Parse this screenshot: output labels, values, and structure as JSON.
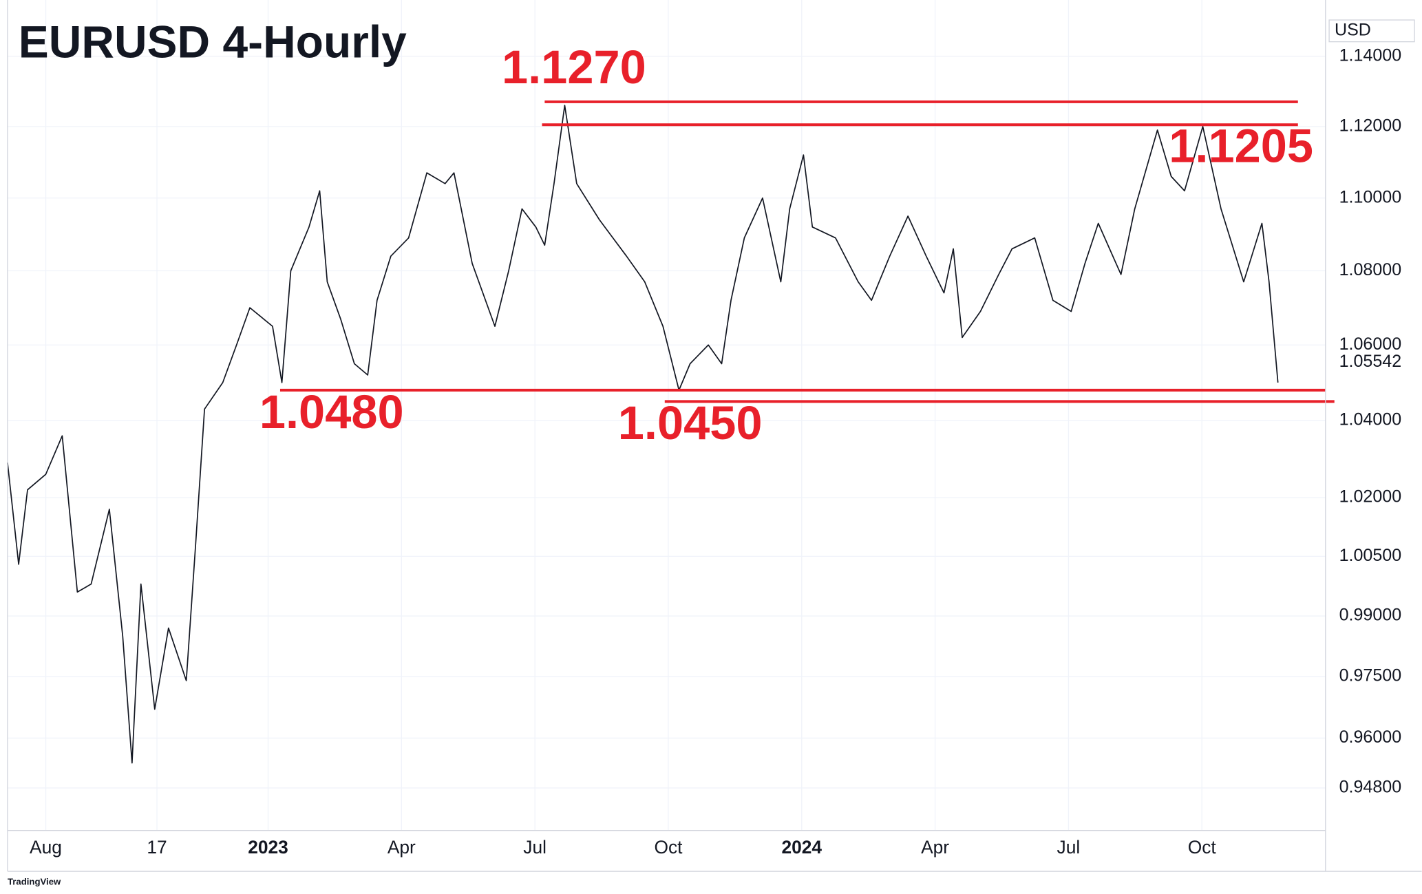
{
  "chart_data": {
    "type": "line",
    "title": "EURUSD 4-Hourly",
    "currency": "USD",
    "watermark": "TradingView",
    "log_scale": true,
    "grid": true,
    "xlim": [
      -0.86,
      28.78
    ],
    "xticks": [
      {
        "value": 0,
        "label": "Aug"
      },
      {
        "value": 2.5,
        "label": "17"
      },
      {
        "value": 5,
        "label": "2023"
      },
      {
        "value": 8,
        "label": "Apr"
      },
      {
        "value": 11,
        "label": "Jul"
      },
      {
        "value": 14,
        "label": "Oct"
      },
      {
        "value": 17,
        "label": "2024"
      },
      {
        "value": 20,
        "label": "Apr"
      },
      {
        "value": 23,
        "label": "Jul"
      },
      {
        "value": 26,
        "label": "Oct"
      }
    ],
    "ylim": [
      0.9379,
      1.1563
    ],
    "yticks": [
      {
        "value": 1.14,
        "label": "1.14000"
      },
      {
        "value": 1.12,
        "label": "1.12000"
      },
      {
        "value": 1.1,
        "label": "1.10000"
      },
      {
        "value": 1.08,
        "label": "1.08000"
      },
      {
        "value": 1.06,
        "label": "1.06000"
      },
      {
        "value": 1.04,
        "label": "1.04000"
      },
      {
        "value": 1.02,
        "label": "1.02000"
      },
      {
        "value": 1.005,
        "label": "1.00500"
      },
      {
        "value": 0.99,
        "label": "0.99000"
      },
      {
        "value": 0.975,
        "label": "0.97500"
      },
      {
        "value": 0.96,
        "label": "0.96000"
      },
      {
        "value": 0.948,
        "label": "0.94800"
      }
    ],
    "last_price": 1.05542,
    "series": [
      {
        "color": "#131722",
        "x": [
          -0.86,
          -0.61,
          -0.41,
          0,
          0.37,
          0.71,
          1.02,
          1.43,
          1.73,
          1.94,
          2.14,
          2.45,
          2.76,
          3.16,
          3.37,
          3.57,
          3.98,
          4.29,
          4.59,
          5.1,
          5.31,
          5.51,
          5.92,
          6.16,
          6.33,
          6.63,
          6.94,
          7.24,
          7.45,
          7.76,
          8.16,
          8.57,
          8.98,
          9.18,
          9.59,
          10.1,
          10.41,
          10.71,
          11.02,
          11.22,
          11.43,
          11.67,
          11.94,
          12.45,
          13.06,
          13.47,
          13.88,
          14.24,
          14.49,
          14.9,
          15.2,
          15.41,
          15.71,
          16.12,
          16.53,
          16.73,
          17.04,
          17.24,
          17.76,
          18.27,
          18.57,
          18.98,
          19.39,
          19.8,
          20.2,
          20.41,
          20.61,
          21.02,
          21.43,
          21.73,
          22.24,
          22.65,
          23.06,
          23.37,
          23.67,
          24.18,
          24.49,
          25,
          25.31,
          25.61,
          26.02,
          26.43,
          26.94,
          27.35,
          27.51,
          27.71
        ],
        "values": [
          1.029,
          1.003,
          1.022,
          1.026,
          1.036,
          0.996,
          0.998,
          1.017,
          0.985,
          0.954,
          0.998,
          0.967,
          0.987,
          0.974,
          1.008,
          1.043,
          1.05,
          1.06,
          1.07,
          1.065,
          1.05,
          1.08,
          1.092,
          1.102,
          1.077,
          1.067,
          1.055,
          1.052,
          1.072,
          1.084,
          1.089,
          1.107,
          1.104,
          1.107,
          1.082,
          1.065,
          1.08,
          1.097,
          1.092,
          1.087,
          1.104,
          1.126,
          1.104,
          1.094,
          1.084,
          1.077,
          1.065,
          1.048,
          1.055,
          1.06,
          1.055,
          1.072,
          1.089,
          1.1,
          1.077,
          1.097,
          1.112,
          1.092,
          1.089,
          1.077,
          1.072,
          1.084,
          1.095,
          1.084,
          1.074,
          1.086,
          1.062,
          1.069,
          1.079,
          1.086,
          1.089,
          1.072,
          1.069,
          1.082,
          1.093,
          1.079,
          1.097,
          1.119,
          1.106,
          1.102,
          1.12,
          1.097,
          1.077,
          1.093,
          1.077,
          1.05
        ]
      }
    ],
    "levels": [
      {
        "value": 1.127,
        "label": "1.1270",
        "x": [
          11.22,
          28.16
        ],
        "color": "#e8202a"
      },
      {
        "value": 1.1205,
        "label": "1.1205",
        "x": [
          11.16,
          28.16
        ],
        "color": "#e8202a"
      },
      {
        "value": 1.048,
        "label": "1.0480",
        "x": [
          5.27,
          28.78
        ],
        "color": "#e8202a"
      },
      {
        "value": 1.045,
        "label": "1.0450",
        "x": [
          13.92,
          28.98
        ],
        "color": "#e8202a"
      }
    ]
  }
}
